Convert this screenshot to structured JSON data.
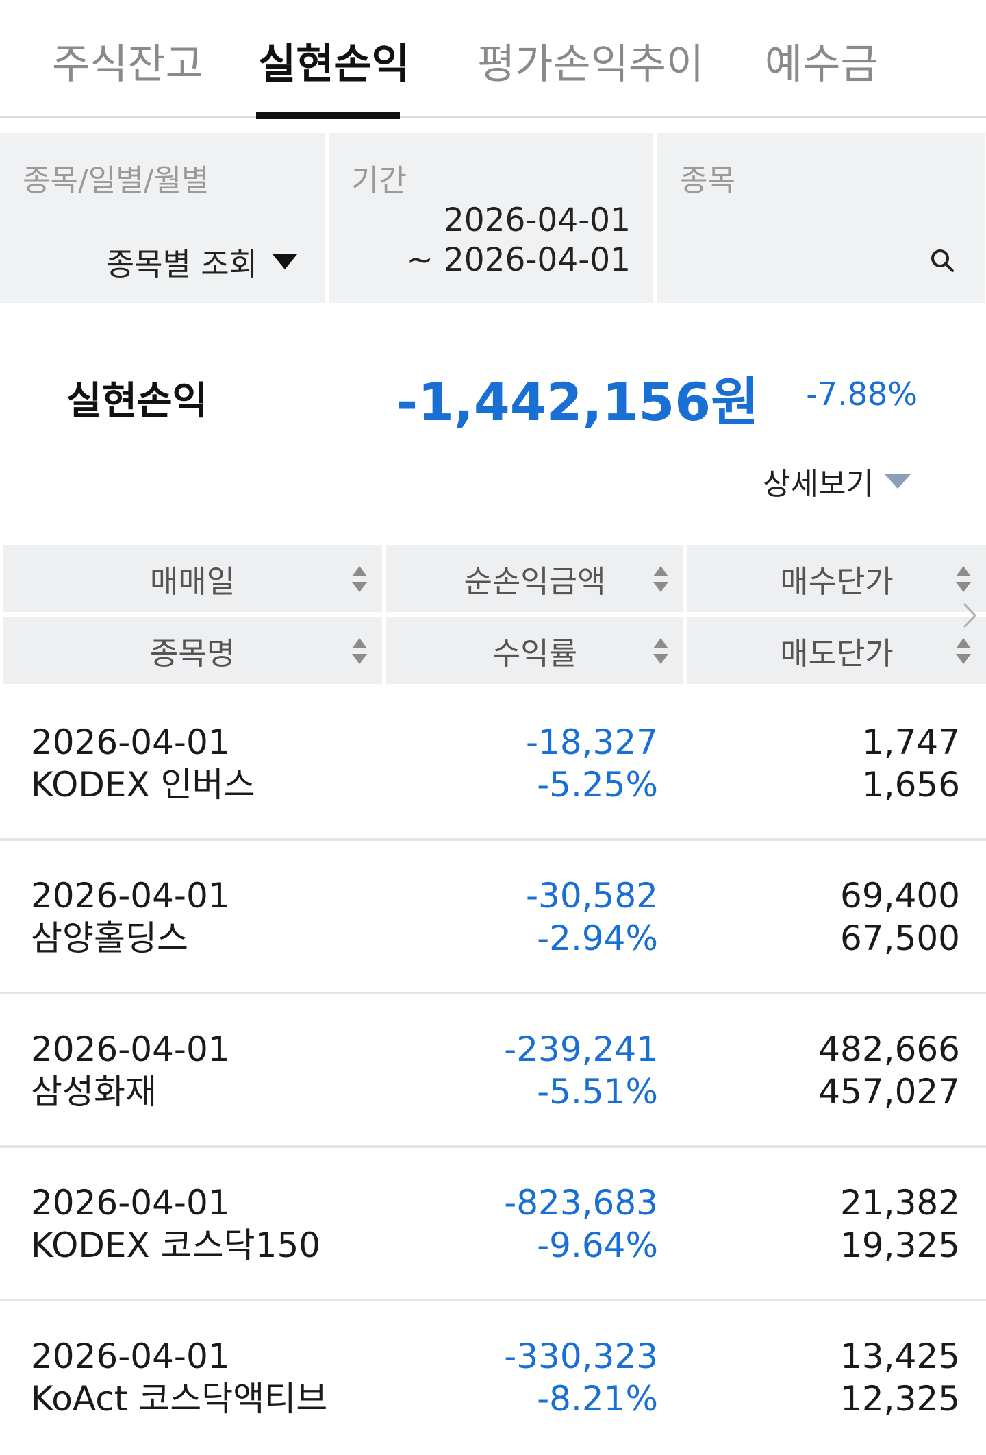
{
  "tabs": [
    {
      "label": "주식잔고",
      "active": false
    },
    {
      "label": "실현손익",
      "active": true
    },
    {
      "label": "평가손익추이",
      "active": false
    },
    {
      "label": "예수금",
      "active": false
    }
  ],
  "filters": {
    "mode": {
      "label": "종목/일별/월별",
      "value": "종목별 조회"
    },
    "period": {
      "label": "기간",
      "start": "2026-04-01",
      "end": "~ 2026-04-01"
    },
    "stock": {
      "label": "종목",
      "value": ""
    }
  },
  "summary": {
    "label": "실현손익",
    "amount": "-1,442,156원",
    "rate": "-7.88%",
    "detail_label": "상세보기"
  },
  "columns": {
    "row1": [
      "매매일",
      "순손익금액",
      "매수단가"
    ],
    "row2": [
      "종목명",
      "수익률",
      "매도단가"
    ]
  },
  "rows": [
    {
      "date": "2026-04-01",
      "name": "KODEX 인버스",
      "pl": "-18,327",
      "rate": "-5.25%",
      "buy": "1,747",
      "sell": "1,656"
    },
    {
      "date": "2026-04-01",
      "name": "삼양홀딩스",
      "pl": "-30,582",
      "rate": "-2.94%",
      "buy": "69,400",
      "sell": "67,500"
    },
    {
      "date": "2026-04-01",
      "name": "삼성화재",
      "pl": "-239,241",
      "rate": "-5.51%",
      "buy": "482,666",
      "sell": "457,027"
    },
    {
      "date": "2026-04-01",
      "name": "KODEX 코스닥150",
      "pl": "-823,683",
      "rate": "-9.64%",
      "buy": "21,382",
      "sell": "19,325"
    },
    {
      "date": "2026-04-01",
      "name": "KoAct 코스닥액티브",
      "pl": "-330,323",
      "rate": "-8.21%",
      "buy": "13,425",
      "sell": "12,325"
    }
  ],
  "colors": {
    "negative": "#1a6fd4",
    "header_bg": "#eeeff1",
    "filter_bg": "#f0f1f3",
    "active_tab": "#111111"
  },
  "icons": [
    "search-icon",
    "caret-down-icon",
    "sort-icon",
    "chevron-right-icon"
  ]
}
